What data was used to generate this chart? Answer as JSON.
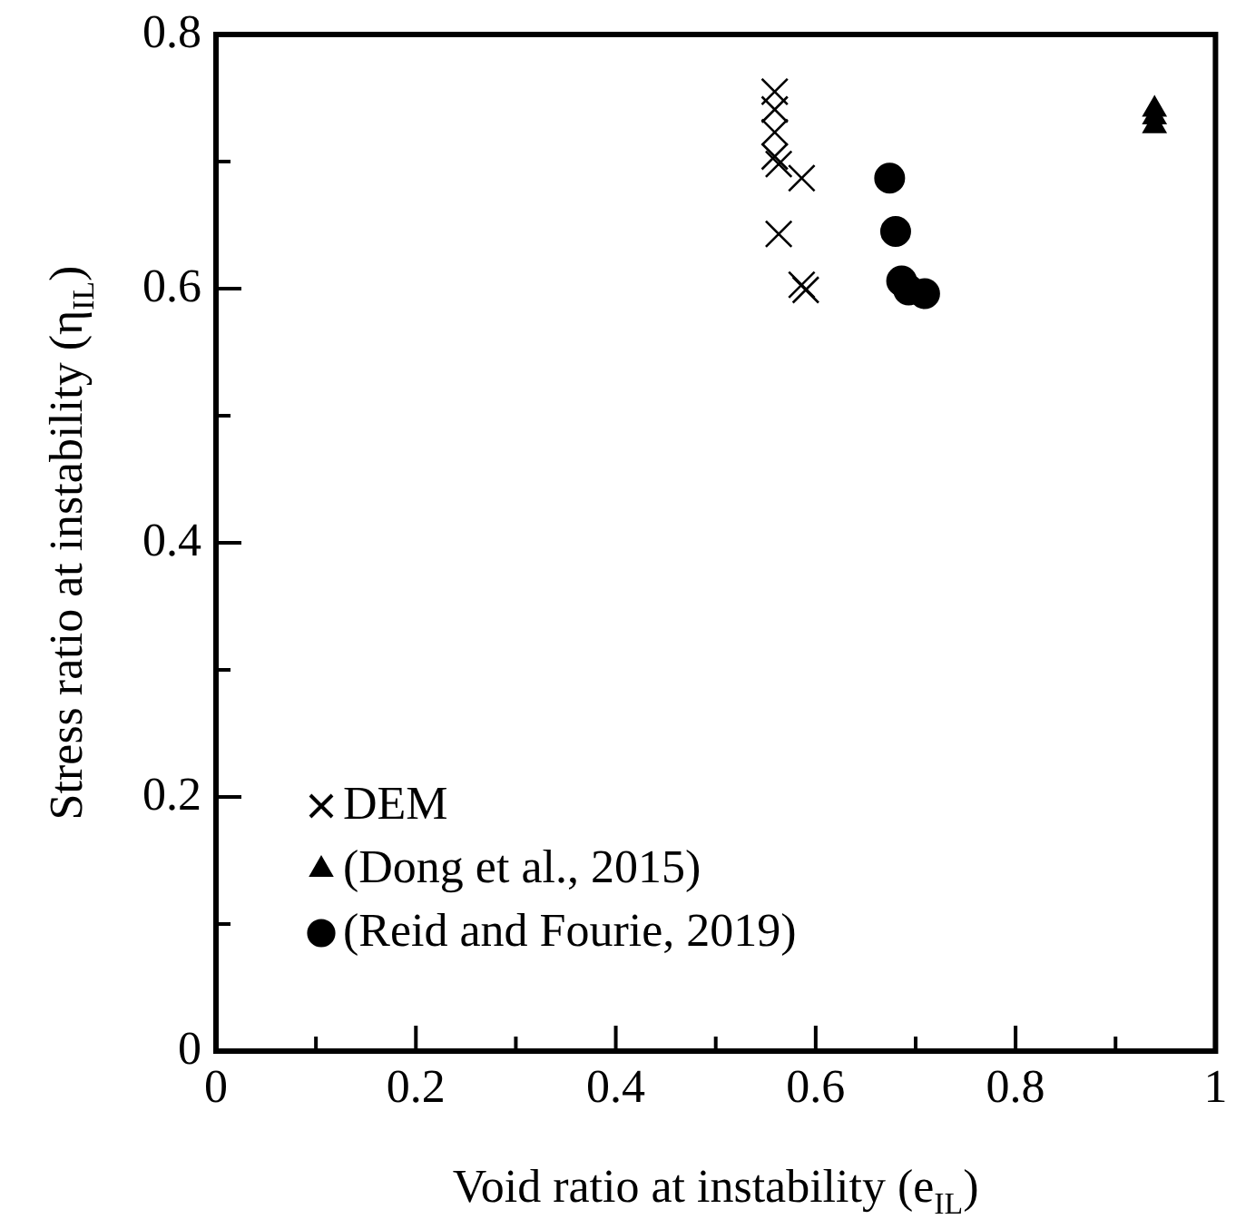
{
  "chart_data": {
    "type": "scatter",
    "xlabel": "Void ratio at instability (e$_{IL}$)",
    "ylabel": "Stress ratio at instability (η$_{IL}$)",
    "xlim": [
      0,
      1
    ],
    "ylim": [
      0,
      0.8
    ],
    "xticks": [
      0,
      {
        "value": 0.1,
        "label": null
      },
      0.2,
      {
        "value": 0.3,
        "label": null
      },
      0.4,
      {
        "value": 0.5,
        "label": null
      },
      0.6,
      {
        "value": 0.7,
        "label": null
      },
      0.8,
      {
        "value": 0.9,
        "label": null
      },
      1
    ],
    "yticks": [
      0,
      {
        "value": 0.1,
        "label": null
      },
      0.2,
      {
        "value": 0.3,
        "label": null
      },
      0.4,
      {
        "value": 0.5,
        "label": null
      },
      0.6,
      {
        "value": 0.7,
        "label": null
      },
      0.8
    ],
    "grid": false,
    "legend": "bottom left",
    "series": [
      {
        "name": "DEM",
        "color": "#000000",
        "marker": "cross",
        "x": [
          0.559,
          0.559,
          0.559,
          0.559,
          0.563,
          0.586,
          0.563,
          0.586,
          0.59
        ],
        "values": [
          0.755,
          0.741,
          0.723,
          0.704,
          0.698,
          0.687,
          0.643,
          0.603,
          0.599
        ]
      },
      {
        "name": "(Dong et al., 2015)",
        "color": "#000000",
        "marker": "triangle",
        "x": [
          0.939,
          0.939,
          0.939
        ],
        "values": [
          0.741,
          0.735,
          0.728
        ]
      },
      {
        "name": "(Reid and Fourie, 2019)",
        "color": "#000000",
        "marker": "circle",
        "x": [
          0.674,
          0.68,
          0.686,
          0.693,
          0.709
        ],
        "values": [
          0.687,
          0.645,
          0.606,
          0.599,
          0.596
        ]
      }
    ]
  }
}
